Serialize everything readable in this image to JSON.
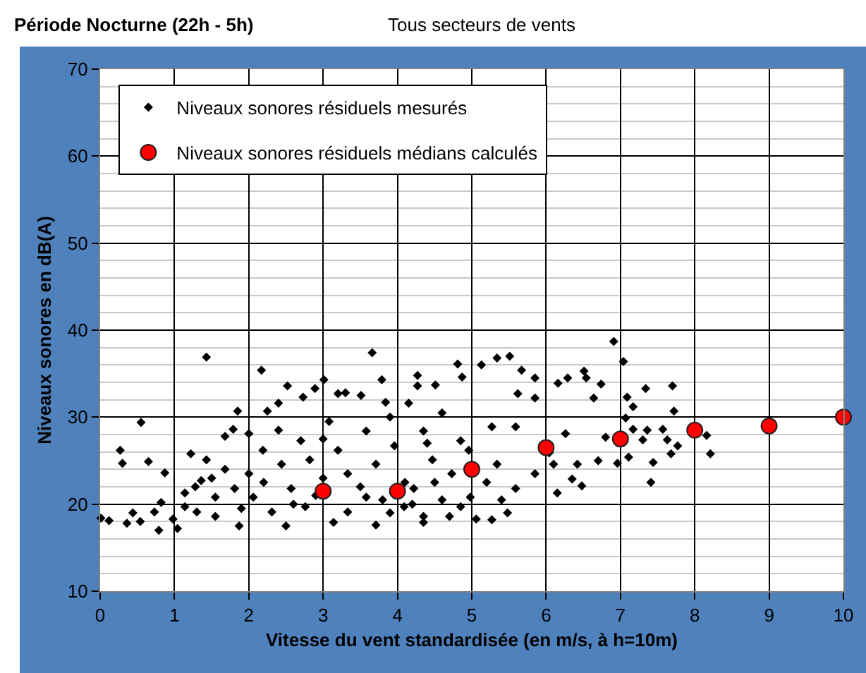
{
  "chart_data": {
    "type": "scatter",
    "title": "Période Nocturne (22h - 5h)",
    "subtitle": "Tous secteurs de vents",
    "xlabel": "Vitesse du vent standardisée (en m/s, à h=10m)",
    "ylabel": "Niveaux sonores en dB(A)",
    "xlim": [
      0,
      10
    ],
    "xticks": [
      0,
      1,
      2,
      3,
      4,
      5,
      6,
      7,
      8,
      9,
      10
    ],
    "ylim": [
      10,
      70
    ],
    "yticks": [
      10,
      {
        "value": 12,
        "label": null
      },
      {
        "value": 14,
        "label": null
      },
      {
        "value": 16,
        "label": null
      },
      {
        "value": 18,
        "label": null
      },
      20,
      {
        "value": 22,
        "label": null
      },
      {
        "value": 24,
        "label": null
      },
      {
        "value": 26,
        "label": null
      },
      {
        "value": 28,
        "label": null
      },
      30,
      {
        "value": 32,
        "label": null
      },
      {
        "value": 34,
        "label": null
      },
      {
        "value": 36,
        "label": null
      },
      {
        "value": 38,
        "label": null
      },
      40,
      {
        "value": 42,
        "label": null
      },
      {
        "value": 44,
        "label": null
      },
      {
        "value": 46,
        "label": null
      },
      {
        "value": 48,
        "label": null
      },
      50,
      {
        "value": 52,
        "label": null
      },
      {
        "value": 54,
        "label": null
      },
      {
        "value": 56,
        "label": null
      },
      {
        "value": 58,
        "label": null
      },
      60,
      {
        "value": 62,
        "label": null
      },
      {
        "value": 64,
        "label": null
      },
      {
        "value": 66,
        "label": null
      },
      {
        "value": 68,
        "label": null
      },
      70
    ],
    "grid": true,
    "legend": "top left",
    "series": [
      {
        "name": "Niveaux sonores résiduels mesurés",
        "color": "#000000",
        "marker": "diamond",
        "x": [
          0.01,
          0.12,
          0.27,
          0.3,
          0.55,
          0.65,
          0.87,
          0.44,
          0.36,
          0.54,
          0.82,
          0.79,
          1.04,
          1.14,
          1.22,
          1.28,
          1.43,
          1.43,
          1.55,
          1.68,
          1.79,
          1.85,
          1.87,
          2.0,
          2.17,
          2.25,
          2.4,
          2.52,
          2.73,
          2.89,
          3.01,
          3.2,
          3.3,
          3.51,
          3.66,
          3.79,
          3.84,
          4.27,
          4.27,
          4.51,
          4.81,
          4.87,
          4.7,
          4.35,
          2.5,
          3.14,
          3.71,
          4.35,
          1.3,
          1.55,
          1.81,
          1.68,
          2.0,
          2.06,
          2.31,
          2.19,
          2.44,
          2.57,
          2.7,
          2.82,
          2.76,
          3.08,
          3.2,
          3.33,
          3.33,
          3.58,
          3.58,
          3.71,
          3.9,
          3.96,
          4.09,
          4.22,
          4.15,
          4.35,
          4.47,
          4.6,
          4.73,
          4.85,
          4.98,
          4.85,
          0.73,
          0.98,
          1.14,
          1.36,
          6.91,
          7.04,
          5.34,
          5.51,
          5.13,
          5.67,
          6.51,
          5.85,
          6.54,
          6.74,
          6.16,
          6.29,
          7.34,
          7.7,
          7.09,
          6.64,
          7.17,
          7.72,
          7.07,
          7.17,
          7.36,
          7.57,
          8.16,
          6.8,
          7.3,
          7.63,
          7.77,
          8.21,
          7.68,
          7.11,
          7.44,
          6.96,
          6.7,
          7.41,
          6.48,
          6.42,
          6.15,
          5.48,
          5.27,
          5.06,
          6.26,
          6.04,
          5.85,
          6.35,
          6.1,
          5.59,
          5.34,
          4.96,
          5.27,
          5.59,
          5.85,
          5.62,
          3.8,
          4.1,
          3.9,
          4.2,
          3.5,
          2.9,
          2.6,
          2.2,
          1.9,
          3.0,
          4.5,
          4.6,
          5.2,
          5.4,
          4.4,
          3.0,
          2.4,
          1.5
        ],
        "values": [
          18.4,
          18.1,
          26.2,
          24.7,
          29.4,
          24.9,
          23.6,
          19.0,
          17.8,
          18.0,
          20.2,
          17.0,
          17.2,
          19.7,
          25.8,
          22.0,
          36.9,
          25.1,
          18.6,
          27.8,
          28.6,
          30.7,
          17.5,
          28.1,
          35.4,
          30.7,
          31.6,
          33.6,
          32.3,
          33.3,
          34.3,
          32.7,
          32.8,
          32.5,
          37.4,
          34.3,
          31.7,
          34.8,
          33.6,
          33.7,
          36.1,
          34.6,
          18.6,
          18.6,
          17.5,
          17.9,
          17.6,
          17.9,
          19.1,
          20.8,
          21.8,
          24.0,
          23.5,
          20.8,
          19.1,
          26.2,
          24.6,
          21.8,
          27.3,
          25.1,
          19.7,
          29.5,
          26.2,
          23.5,
          19.1,
          28.4,
          20.8,
          24.6,
          30.0,
          26.7,
          19.7,
          21.8,
          31.6,
          28.4,
          25.1,
          30.5,
          23.5,
          27.3,
          20.8,
          19.7,
          19.1,
          18.3,
          21.3,
          22.7,
          38.7,
          36.4,
          36.8,
          37.0,
          36.0,
          35.4,
          35.3,
          34.5,
          34.5,
          33.8,
          33.9,
          34.5,
          33.3,
          33.6,
          32.3,
          32.2,
          31.2,
          30.7,
          29.9,
          28.6,
          28.5,
          28.6,
          27.9,
          27.7,
          27.4,
          27.4,
          26.7,
          25.8,
          25.8,
          25.4,
          24.8,
          24.7,
          25.0,
          22.5,
          22.1,
          24.6,
          21.3,
          19.0,
          18.2,
          18.3,
          28.1,
          25.9,
          23.5,
          22.9,
          24.6,
          21.8,
          24.6,
          26.2,
          28.9,
          28.9,
          32.2,
          32.7,
          20.5,
          22.5,
          19.0,
          20.0,
          22.0,
          21.0,
          20.0,
          22.5,
          19.5,
          23.0,
          22.5,
          20.5,
          22.5,
          20.5,
          27.0,
          27.5,
          28.5,
          23.0
        ]
      },
      {
        "name": "Niveaux sonores résiduels médians calculés",
        "color": "#ff0000",
        "marker": "circle",
        "x": [
          3,
          4,
          5,
          6,
          7,
          8,
          9,
          10
        ],
        "values": [
          21.5,
          21.5,
          24,
          26.5,
          27.5,
          28.5,
          29,
          30
        ]
      }
    ]
  }
}
